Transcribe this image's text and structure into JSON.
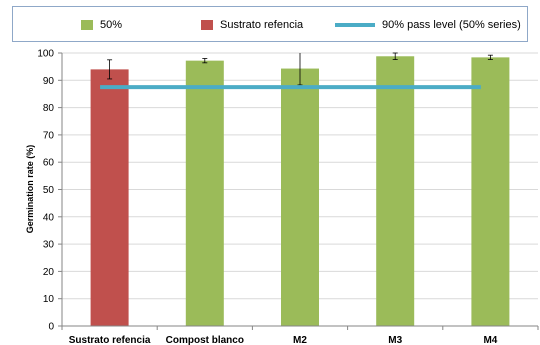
{
  "chart_data": {
    "type": "bar",
    "categories": [
      "Sustrato refencia",
      "Compost blanco",
      "M2",
      "M3",
      "M4"
    ],
    "series": [
      {
        "name": "50%",
        "values": [
          null,
          97.2,
          94.3,
          98.8,
          98.4
        ],
        "errors": [
          null,
          0.8,
          6.0,
          1.2,
          0.8
        ],
        "color": "#9bbb59"
      },
      {
        "name": "Sustrato refencia",
        "values": [
          94.0,
          null,
          null,
          null,
          null
        ],
        "errors": [
          3.5,
          null,
          null,
          null,
          null
        ],
        "color": "#c0504d"
      }
    ],
    "reference_line": {
      "name": "90% pass level (50% series)",
      "value": 87.5,
      "color": "#4bacc6"
    },
    "ylabel": "Germination rate (%)",
    "xlabel": "",
    "ylim": [
      0,
      100
    ],
    "yticks": [
      0,
      10,
      20,
      30,
      40,
      50,
      60,
      70,
      80,
      90,
      100
    ],
    "grid": true,
    "legend_position": "top"
  }
}
